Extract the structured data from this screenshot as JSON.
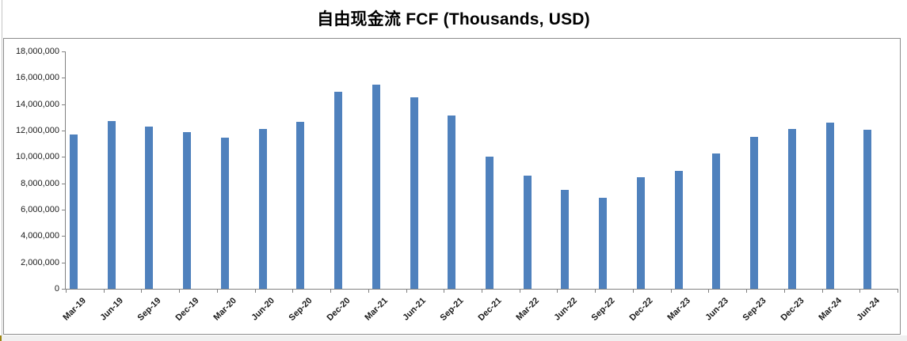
{
  "chart_data": {
    "type": "bar",
    "title": "自由现金流 FCF (Thousands, USD)",
    "categories": [
      "Mar-19",
      "Jun-19",
      "Sep-19",
      "Dec-19",
      "Mar-20",
      "Jun-20",
      "Sep-20",
      "Dec-20",
      "Mar-21",
      "Jun-21",
      "Sep-21",
      "Dec-21",
      "Mar-22",
      "Jun-22",
      "Sep-22",
      "Dec-22",
      "Mar-23",
      "Jun-23",
      "Sep-23",
      "Dec-23",
      "Mar-24",
      "Jun-24"
    ],
    "values": [
      11700000,
      12700000,
      12300000,
      11900000,
      11450000,
      12100000,
      12650000,
      14950000,
      15500000,
      14500000,
      13150000,
      10000000,
      8600000,
      7500000,
      6900000,
      8450000,
      8950000,
      10250000,
      11500000,
      12100000,
      12600000,
      12050000
    ],
    "ylim": [
      0,
      18000000
    ],
    "ytick_step": 2000000,
    "ytick_labels": [
      "0",
      "2,000,000",
      "4,000,000",
      "6,000,000",
      "8,000,000",
      "10,000,000",
      "12,000,000",
      "14,000,000",
      "16,000,000",
      "18,000,000"
    ],
    "xlabel": "",
    "ylabel": "",
    "grid": "off",
    "legend": "none",
    "bar_color": "#4f81bd",
    "axis_color": "#808080",
    "label_color": "#1a1a1a"
  }
}
